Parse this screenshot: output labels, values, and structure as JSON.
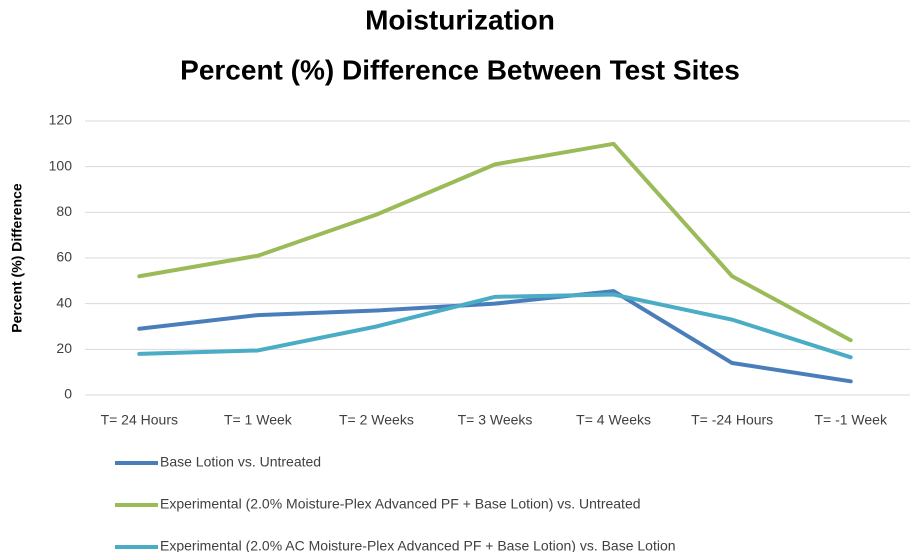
{
  "chart_data": {
    "type": "line",
    "title": "Moisturization",
    "subtitle": "Percent (%) Difference Between Test Sites",
    "ylabel": "Percent (%) Difference",
    "categories": [
      "T= 24 Hours",
      "T= 1 Week",
      "T= 2 Weeks",
      "T= 3 Weeks",
      "T= 4 Weeks",
      "T= -24 Hours",
      "T= -1 Week"
    ],
    "series": [
      {
        "name": "Base Lotion vs. Untreated",
        "color": "#4a7ebb",
        "values": [
          29,
          35,
          37,
          40,
          45.5,
          14,
          6
        ]
      },
      {
        "name": "Experimental (2.0% Moisture-Plex Advanced PF + Base Lotion) vs. Untreated",
        "color": "#9bbb59",
        "values": [
          52,
          61,
          79,
          101,
          110,
          52,
          24
        ]
      },
      {
        "name": "Experimental (2.0% AC Moisture-Plex Advanced PF + Base Lotion) vs. Base Lotion",
        "color": "#4bacc6",
        "values": [
          18,
          19.5,
          30,
          43,
          44,
          33,
          16.5
        ]
      }
    ],
    "ylim": [
      0,
      120
    ],
    "yticks": [
      0,
      20,
      40,
      60,
      80,
      100,
      120
    ],
    "grid": true,
    "legend": "bottom"
  }
}
